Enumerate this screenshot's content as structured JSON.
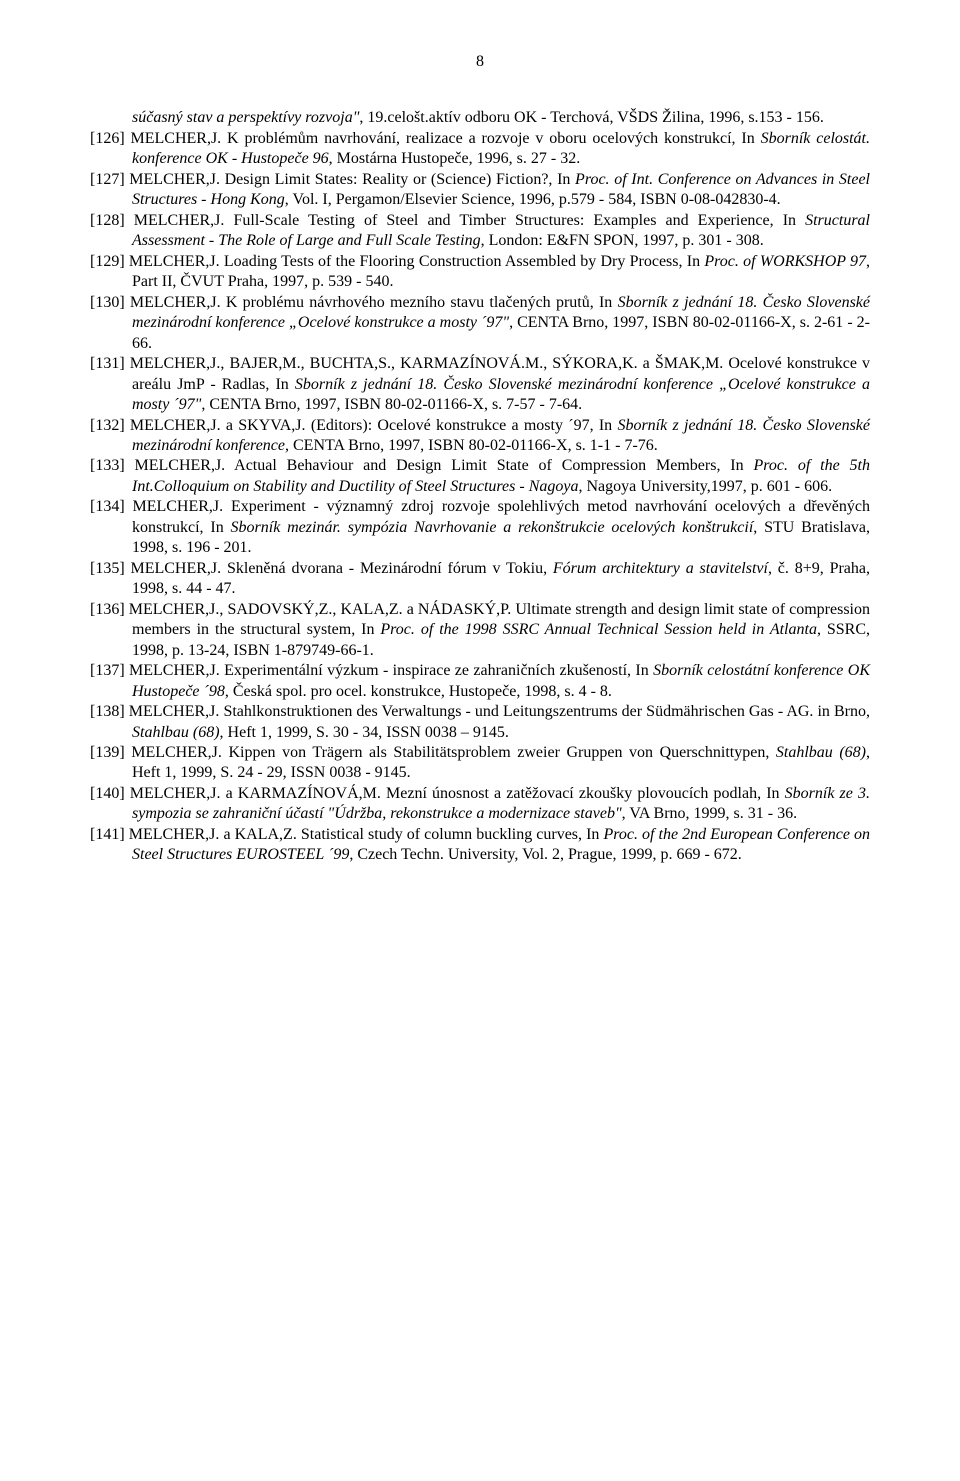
{
  "page_number": "8",
  "continuation": {
    "text_before_italic": "súčasný stav a perspektívy rozvoja\"",
    "text_after": ", 19.celošt.aktív odboru OK - Terchová, VŠDS Žilina, 1996, s.153 - 156."
  },
  "refs": [
    {
      "num": "[126]",
      "parts": [
        {
          "t": " MELCHER,J. K problémům navrhování, realizace a rozvoje v oboru ocelových konstrukcí, In "
        },
        {
          "t": "Sborník celostát. konference OK - Hustopeče 96",
          "i": true
        },
        {
          "t": ", Mostárna Hustopeče, 1996, s. 27 - 32."
        }
      ]
    },
    {
      "num": "[127]",
      "parts": [
        {
          "t": " MELCHER,J. Design Limit States: Reality or (Science) Fiction?, In "
        },
        {
          "t": "Proc. of Int. Conference on Advances in Steel Structures - Hong Kong",
          "i": true
        },
        {
          "t": ", Vol. I, Pergamon/Elsevier Science, 1996, p.579 - 584, ISBN 0-08-042830-4."
        }
      ]
    },
    {
      "num": "[128]",
      "parts": [
        {
          "t": " MELCHER,J. Full-Scale Testing of Steel and Timber Structures: Examples and Experience, In "
        },
        {
          "t": "Structural Assessment - The Role of Large and Full Scale Testing",
          "i": true
        },
        {
          "t": ", London: E&FN SPON, 1997, p. 301 - 308."
        }
      ]
    },
    {
      "num": "[129]",
      "parts": [
        {
          "t": " MELCHER,J. Loading Tests of the Flooring Construction Assembled by Dry Process, In "
        },
        {
          "t": "Proc. of WORKSHOP 97",
          "i": true
        },
        {
          "t": ", Part II, ČVUT Praha, 1997, p. 539 - 540."
        }
      ]
    },
    {
      "num": "[130]",
      "parts": [
        {
          "t": " MELCHER,J. K problému návrhového mezního stavu tlačených prutů, In "
        },
        {
          "t": "Sborník z jednání 18. Česko Slovenské mezinárodní konference „Ocelové konstrukce a mosty ´97\"",
          "i": true
        },
        {
          "t": ", CENTA Brno, 1997, ISBN 80-02-01166-X, s. 2-61 - 2-66."
        }
      ]
    },
    {
      "num": "[131]",
      "parts": [
        {
          "t": " MELCHER,J., BAJER,M., BUCHTA,S., KARMAZÍNOVÁ.M., SÝKORA,K. a ŠMAK,M. Ocelové konstrukce v areálu JmP - Radlas, In "
        },
        {
          "t": "Sborník z jednání 18. Česko Slovenské mezinárodní konference „Ocelové konstrukce a mosty ´97\"",
          "i": true
        },
        {
          "t": ", CENTA Brno, 1997, ISBN 80-02-01166-X, s. 7-57 - 7-64."
        }
      ]
    },
    {
      "num": "[132]",
      "parts": [
        {
          "t": " MELCHER,J. a SKYVA,J. (Editors): Ocelové konstrukce a mosty ´97, In "
        },
        {
          "t": "Sborník z jednání 18. Česko Slovenské mezinárodní konference",
          "i": true
        },
        {
          "t": ", CENTA Brno, 1997, ISBN 80-02-01166-X, s. 1-1 - 7-76."
        }
      ]
    },
    {
      "num": "[133]",
      "parts": [
        {
          "t": " MELCHER,J. Actual Behaviour and Design Limit State of Compression Members, In "
        },
        {
          "t": "Proc. of the 5th Int.Colloquium on Stability and Ductility of Steel Structures - Nagoya",
          "i": true
        },
        {
          "t": ", Nagoya University,1997, p. 601 - 606."
        }
      ]
    },
    {
      "num": "[134]",
      "parts": [
        {
          "t": " MELCHER,J. Experiment - významný zdroj rozvoje spolehlivých metod navrhování ocelových a dřevěných konstrukcí, In "
        },
        {
          "t": "Sborník mezinár. sympózia Navrhovanie a rekonštrukcie ocelových konštrukcií",
          "i": true
        },
        {
          "t": ", STU Bratislava, 1998, s. 196 - 201."
        }
      ]
    },
    {
      "num": "[135]",
      "parts": [
        {
          "t": " MELCHER,J. Skleněná dvorana - Mezinárodní fórum v Tokiu, "
        },
        {
          "t": "Fórum architektury a stavitelství",
          "i": true
        },
        {
          "t": ", č. 8+9, Praha, 1998, s. 44 - 47."
        }
      ]
    },
    {
      "num": "[136]",
      "parts": [
        {
          "t": " MELCHER,J., SADOVSKÝ,Z., KALA,Z. a NÁDASKÝ,P. Ultimate strength and design limit state of compression members in the structural system, In "
        },
        {
          "t": "Proc. of the 1998 SSRC Annual Technical Session held in Atlanta",
          "i": true
        },
        {
          "t": ", SSRC, 1998, p. 13-24, ISBN 1-879749-66-1."
        }
      ]
    },
    {
      "num": "[137]",
      "parts": [
        {
          "t": " MELCHER,J. Experimentální výzkum - inspirace ze zahraničních zkušeností, In "
        },
        {
          "t": "Sborník celostátní konference OK Hustopeče ´98",
          "i": true
        },
        {
          "t": ", Česká spol. pro ocel. konstrukce, Hustopeče, 1998, s. 4 - 8."
        }
      ]
    },
    {
      "num": "[138]",
      "parts": [
        {
          "t": " MELCHER,J. Stahlkonstruktionen des Verwaltungs - und Leitungszentrums der Südmährischen Gas - AG. in Brno, "
        },
        {
          "t": "Stahlbau (68)",
          "i": true
        },
        {
          "t": ", Heft 1, 1999, S. 30 - 34, ISSN 0038 – 9145."
        }
      ]
    },
    {
      "num": "[139]",
      "parts": [
        {
          "t": " MELCHER,J. Kippen von Trägern als Stabilitätsproblem zweier Gruppen von Querschnittypen, "
        },
        {
          "t": "Stahlbau (68)",
          "i": true
        },
        {
          "t": ", Heft 1, 1999, S. 24 - 29, ISSN 0038 - 9145."
        }
      ]
    },
    {
      "num": "[140]",
      "parts": [
        {
          "t": " MELCHER,J. a KARMAZÍNOVÁ,M. Mezní únosnost a zatěžovací zkoušky plovoucích podlah, In "
        },
        {
          "t": "Sborník ze 3. sympozia se zahraniční účastí \"Údržba, rekonstrukce a modernizace staveb\"",
          "i": true
        },
        {
          "t": ", VA Brno, 1999, s. 31 - 36."
        }
      ]
    },
    {
      "num": "[141]",
      "parts": [
        {
          "t": " MELCHER,J. a KALA,Z. Statistical study of column buckling curves, In "
        },
        {
          "t": "Proc. of the 2nd European Conference on Steel Structures EUROSTEEL ´99",
          "i": true
        },
        {
          "t": ", Czech Techn. University, Vol. 2, Prague, 1999, p. 669 - 672."
        }
      ]
    }
  ]
}
